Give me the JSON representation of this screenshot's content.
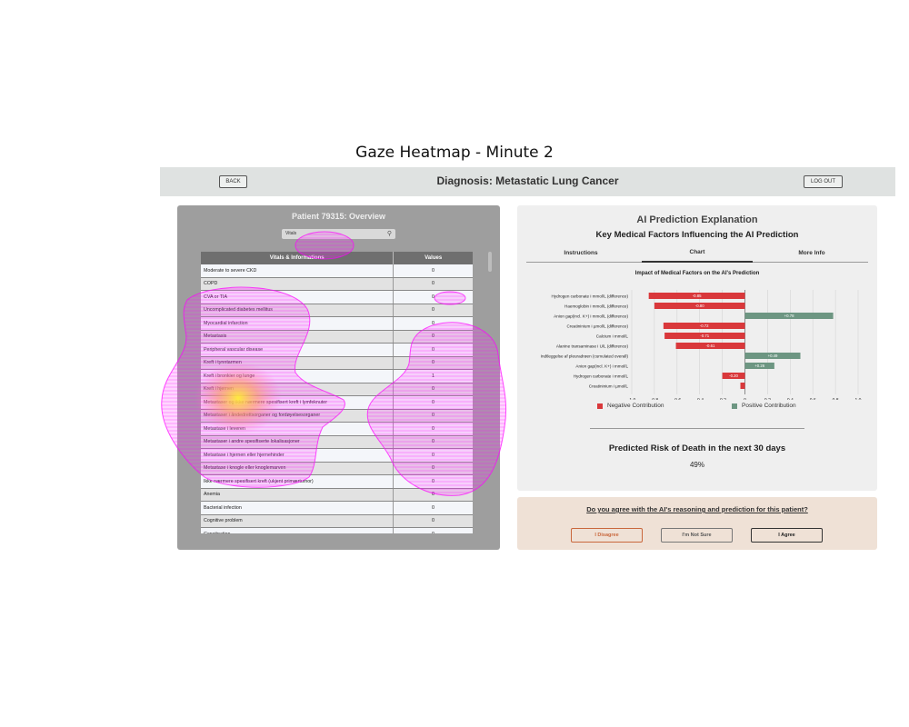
{
  "figure_title": "Gaze Heatmap - Minute 2",
  "header": {
    "back_label": "BACK",
    "title": "Diagnosis: Metastatic Lung Cancer",
    "logout_label": "LOG OUT"
  },
  "left_panel": {
    "title": "Patient 79315: Overview",
    "search": {
      "tag": "Vitals",
      "icon": "search-icon"
    },
    "table": {
      "headers": [
        "Vitals & Informations",
        "Values"
      ],
      "rows": [
        {
          "name": "Moderate to severe CKD",
          "value": "0"
        },
        {
          "name": "COPD",
          "value": "0"
        },
        {
          "name": "CVA or TIA",
          "value": "0"
        },
        {
          "name": "Uncomplicated diabetes mellitus",
          "value": "0"
        },
        {
          "name": "Myocardial infarction",
          "value": "0"
        },
        {
          "name": "Metastasis",
          "value": "0"
        },
        {
          "name": "Peripheral vascular disease",
          "value": "0"
        },
        {
          "name": "Kreft i tynntarmen",
          "value": "0"
        },
        {
          "name": "Kreft i bronkier og lunge",
          "value": "1"
        },
        {
          "name": "Kreft i hjernen",
          "value": "0"
        },
        {
          "name": "Metastaser og ikke nærmere spesifisert kreft i lymfeknuter",
          "value": "0"
        },
        {
          "name": "Metastaser i åndedrettsorganer og fordøyelsesorganer",
          "value": "0"
        },
        {
          "name": "Metastase i leveren",
          "value": "0"
        },
        {
          "name": "Metastaser i andre spesifiserte lokalisasjoner",
          "value": "0"
        },
        {
          "name": "Metastase i hjernen eller hjernehinder",
          "value": "0"
        },
        {
          "name": "Metastase i knogle eller knoglemarven",
          "value": "0"
        },
        {
          "name": "Ikke nærmere spesifisert kreft (ukjent primærtumor)",
          "value": "0"
        },
        {
          "name": "Anemia",
          "value": "0"
        },
        {
          "name": "Bacterial infection",
          "value": "0"
        },
        {
          "name": "Cognitive problem",
          "value": "0"
        },
        {
          "name": "Constipation",
          "value": "0"
        }
      ]
    }
  },
  "right_panel": {
    "title": "AI Prediction Explanation",
    "subtitle": "Key Medical Factors Influencing the AI Prediction",
    "tabs": [
      "Instructions",
      "Chart",
      "More Info"
    ],
    "active_tab": "Chart",
    "chart_data": {
      "type": "bar",
      "orientation": "horizontal",
      "title": "Impact of Medical Factors on the AI's Prediction",
      "categories": [
        "Hydrogen carbonate i mmol/L (difference)",
        "Haemoglobin i mmol/L (difference)",
        "Anion gap(incl. K+) i mmol/L (difference)",
        "Creatininium i µmol/L (difference)",
        "Calcium i mmol/L",
        "Alanine transaminase i U/L (difference)",
        "Indtleggelse af pleuradrøen (cumulated overall)",
        "Anion gap(incl. K+) i mmol/L",
        "Hydrogen carbonate i mmol/L",
        "Creatininium i µmol/L"
      ],
      "values": [
        -0.85,
        -0.8,
        0.78,
        -0.72,
        -0.71,
        -0.61,
        0.49,
        0.26,
        -0.2,
        -0.04
      ],
      "data_labels": [
        "-0.85",
        "-0.80",
        "+0.78",
        "-0.72",
        "-0.71",
        "-0.61",
        "+0.49",
        "+0.26",
        "-0.20",
        ""
      ],
      "xlim": [
        -1.0,
        1.0
      ],
      "xticks": [
        "-1,0",
        "-0,8",
        "-0,6",
        "-0,4",
        "-0,2",
        "0",
        "0,2",
        "0,4",
        "0,6",
        "0,8",
        "1,0"
      ],
      "grid": true,
      "legend_position": "bottom",
      "legend": [
        {
          "label": "Negative Contribution",
          "color": "#d9383b"
        },
        {
          "label": "Positive Contribution",
          "color": "#6d9682"
        }
      ]
    },
    "risk_label": "Predicted Risk of Death in the next 30 days",
    "risk_value": "49%"
  },
  "question_panel": {
    "question": "Do you agree with the AI's reasoning and prediction for this patient?",
    "buttons": [
      "I Disagree",
      "I'm Not Sure",
      "I Agree"
    ]
  },
  "colors": {
    "negative": "#d9383b",
    "positive": "#6d9682",
    "heatmap": "#ff33ff",
    "heat_hotspot": "#ffee33"
  }
}
